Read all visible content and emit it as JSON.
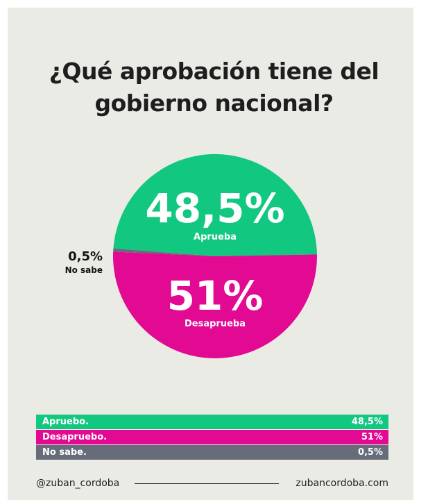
{
  "title_lines": [
    "¿Qué aprobación tiene del",
    "gobierno nacional?"
  ],
  "chart_data": {
    "type": "pie",
    "title": "¿Qué aprobación tiene del gobierno nacional?",
    "slices": [
      {
        "label": "Aprueba",
        "table_label": "Apruebo.",
        "value": 48.5,
        "value_label": "48,5%",
        "color": "#12c77f"
      },
      {
        "label": "Desaprueba",
        "table_label": "Desapruebo.",
        "value": 51,
        "value_label": "51%",
        "color": "#e20a92"
      },
      {
        "label": "No sabe",
        "table_label": "No sabe.",
        "value": 0.5,
        "value_label": "0,5%",
        "color": "#666c7a"
      }
    ]
  },
  "footer": {
    "handle": "@zuban_cordoba",
    "website": "zubancordoba.com"
  },
  "colors": {
    "background": "#ebebe6",
    "text": "#1e1e1e"
  }
}
